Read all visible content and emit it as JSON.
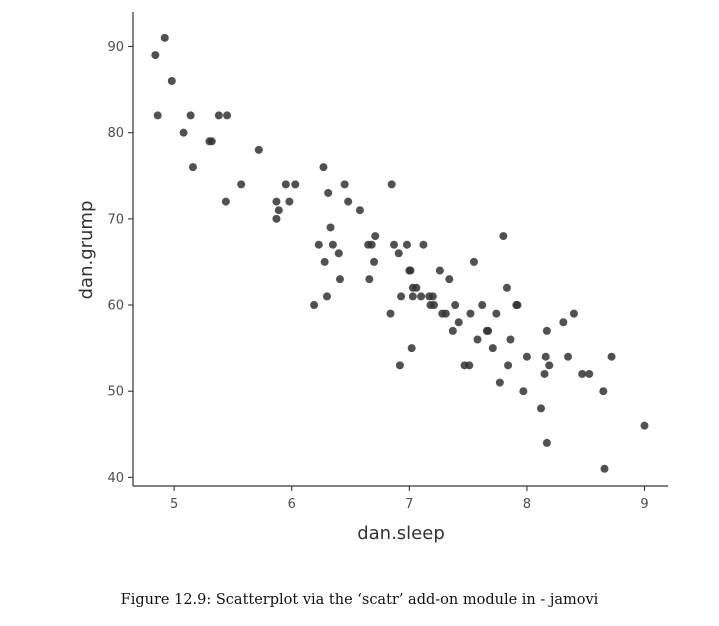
{
  "chart_data": {
    "type": "scatter",
    "xlabel": "dan.sleep",
    "ylabel": "dan.grump",
    "xlim": [
      4.65,
      9.2
    ],
    "ylim": [
      39,
      94
    ],
    "x_ticks": [
      5,
      6,
      7,
      8,
      9
    ],
    "y_ticks": [
      40,
      50,
      60,
      70,
      80,
      90
    ],
    "grid": false,
    "point_color": "#333333",
    "points": [
      {
        "x": 4.84,
        "y": 89
      },
      {
        "x": 4.92,
        "y": 91
      },
      {
        "x": 4.98,
        "y": 86
      },
      {
        "x": 4.86,
        "y": 82
      },
      {
        "x": 5.08,
        "y": 80
      },
      {
        "x": 5.14,
        "y": 82
      },
      {
        "x": 5.16,
        "y": 76
      },
      {
        "x": 5.3,
        "y": 79
      },
      {
        "x": 5.32,
        "y": 79
      },
      {
        "x": 5.38,
        "y": 82
      },
      {
        "x": 5.45,
        "y": 82
      },
      {
        "x": 5.44,
        "y": 72
      },
      {
        "x": 5.57,
        "y": 74
      },
      {
        "x": 5.72,
        "y": 78
      },
      {
        "x": 5.87,
        "y": 72
      },
      {
        "x": 5.87,
        "y": 70
      },
      {
        "x": 5.89,
        "y": 71
      },
      {
        "x": 5.95,
        "y": 74
      },
      {
        "x": 5.98,
        "y": 72
      },
      {
        "x": 6.03,
        "y": 74
      },
      {
        "x": 6.19,
        "y": 60
      },
      {
        "x": 6.23,
        "y": 67
      },
      {
        "x": 6.27,
        "y": 76
      },
      {
        "x": 6.28,
        "y": 65
      },
      {
        "x": 6.3,
        "y": 61
      },
      {
        "x": 6.31,
        "y": 73
      },
      {
        "x": 6.33,
        "y": 69
      },
      {
        "x": 6.35,
        "y": 67
      },
      {
        "x": 6.4,
        "y": 66
      },
      {
        "x": 6.41,
        "y": 63
      },
      {
        "x": 6.45,
        "y": 74
      },
      {
        "x": 6.48,
        "y": 72
      },
      {
        "x": 6.58,
        "y": 71
      },
      {
        "x": 6.65,
        "y": 67
      },
      {
        "x": 6.66,
        "y": 63
      },
      {
        "x": 6.68,
        "y": 67
      },
      {
        "x": 6.7,
        "y": 65
      },
      {
        "x": 6.71,
        "y": 68
      },
      {
        "x": 6.85,
        "y": 74
      },
      {
        "x": 6.84,
        "y": 59
      },
      {
        "x": 6.87,
        "y": 67
      },
      {
        "x": 6.91,
        "y": 66
      },
      {
        "x": 6.92,
        "y": 53
      },
      {
        "x": 6.93,
        "y": 61
      },
      {
        "x": 6.98,
        "y": 67
      },
      {
        "x": 7.0,
        "y": 64
      },
      {
        "x": 7.01,
        "y": 64
      },
      {
        "x": 7.02,
        "y": 55
      },
      {
        "x": 7.03,
        "y": 62
      },
      {
        "x": 7.03,
        "y": 61
      },
      {
        "x": 7.06,
        "y": 62
      },
      {
        "x": 7.1,
        "y": 61
      },
      {
        "x": 7.12,
        "y": 67
      },
      {
        "x": 7.17,
        "y": 61
      },
      {
        "x": 7.18,
        "y": 60
      },
      {
        "x": 7.2,
        "y": 61
      },
      {
        "x": 7.21,
        "y": 60
      },
      {
        "x": 7.26,
        "y": 64
      },
      {
        "x": 7.28,
        "y": 59
      },
      {
        "x": 7.31,
        "y": 59
      },
      {
        "x": 7.34,
        "y": 63
      },
      {
        "x": 7.37,
        "y": 57
      },
      {
        "x": 7.39,
        "y": 60
      },
      {
        "x": 7.42,
        "y": 58
      },
      {
        "x": 7.47,
        "y": 53
      },
      {
        "x": 7.51,
        "y": 53
      },
      {
        "x": 7.52,
        "y": 59
      },
      {
        "x": 7.55,
        "y": 65
      },
      {
        "x": 7.58,
        "y": 56
      },
      {
        "x": 7.62,
        "y": 60
      },
      {
        "x": 7.66,
        "y": 57
      },
      {
        "x": 7.67,
        "y": 57
      },
      {
        "x": 7.71,
        "y": 55
      },
      {
        "x": 7.74,
        "y": 59
      },
      {
        "x": 7.77,
        "y": 51
      },
      {
        "x": 7.8,
        "y": 68
      },
      {
        "x": 7.83,
        "y": 62
      },
      {
        "x": 7.84,
        "y": 53
      },
      {
        "x": 7.86,
        "y": 56
      },
      {
        "x": 7.91,
        "y": 60
      },
      {
        "x": 7.92,
        "y": 60
      },
      {
        "x": 7.97,
        "y": 50
      },
      {
        "x": 8.0,
        "y": 54
      },
      {
        "x": 8.12,
        "y": 48
      },
      {
        "x": 8.15,
        "y": 52
      },
      {
        "x": 8.17,
        "y": 57
      },
      {
        "x": 8.16,
        "y": 54
      },
      {
        "x": 8.19,
        "y": 53
      },
      {
        "x": 8.17,
        "y": 44
      },
      {
        "x": 8.31,
        "y": 58
      },
      {
        "x": 8.35,
        "y": 54
      },
      {
        "x": 8.4,
        "y": 59
      },
      {
        "x": 8.47,
        "y": 52
      },
      {
        "x": 8.53,
        "y": 52
      },
      {
        "x": 8.65,
        "y": 50
      },
      {
        "x": 8.66,
        "y": 41
      },
      {
        "x": 8.72,
        "y": 54
      },
      {
        "x": 9.0,
        "y": 46
      }
    ]
  },
  "caption": "Figure 12.9: Scatterplot via the ‘scatr’ add-on module in - jamovi"
}
